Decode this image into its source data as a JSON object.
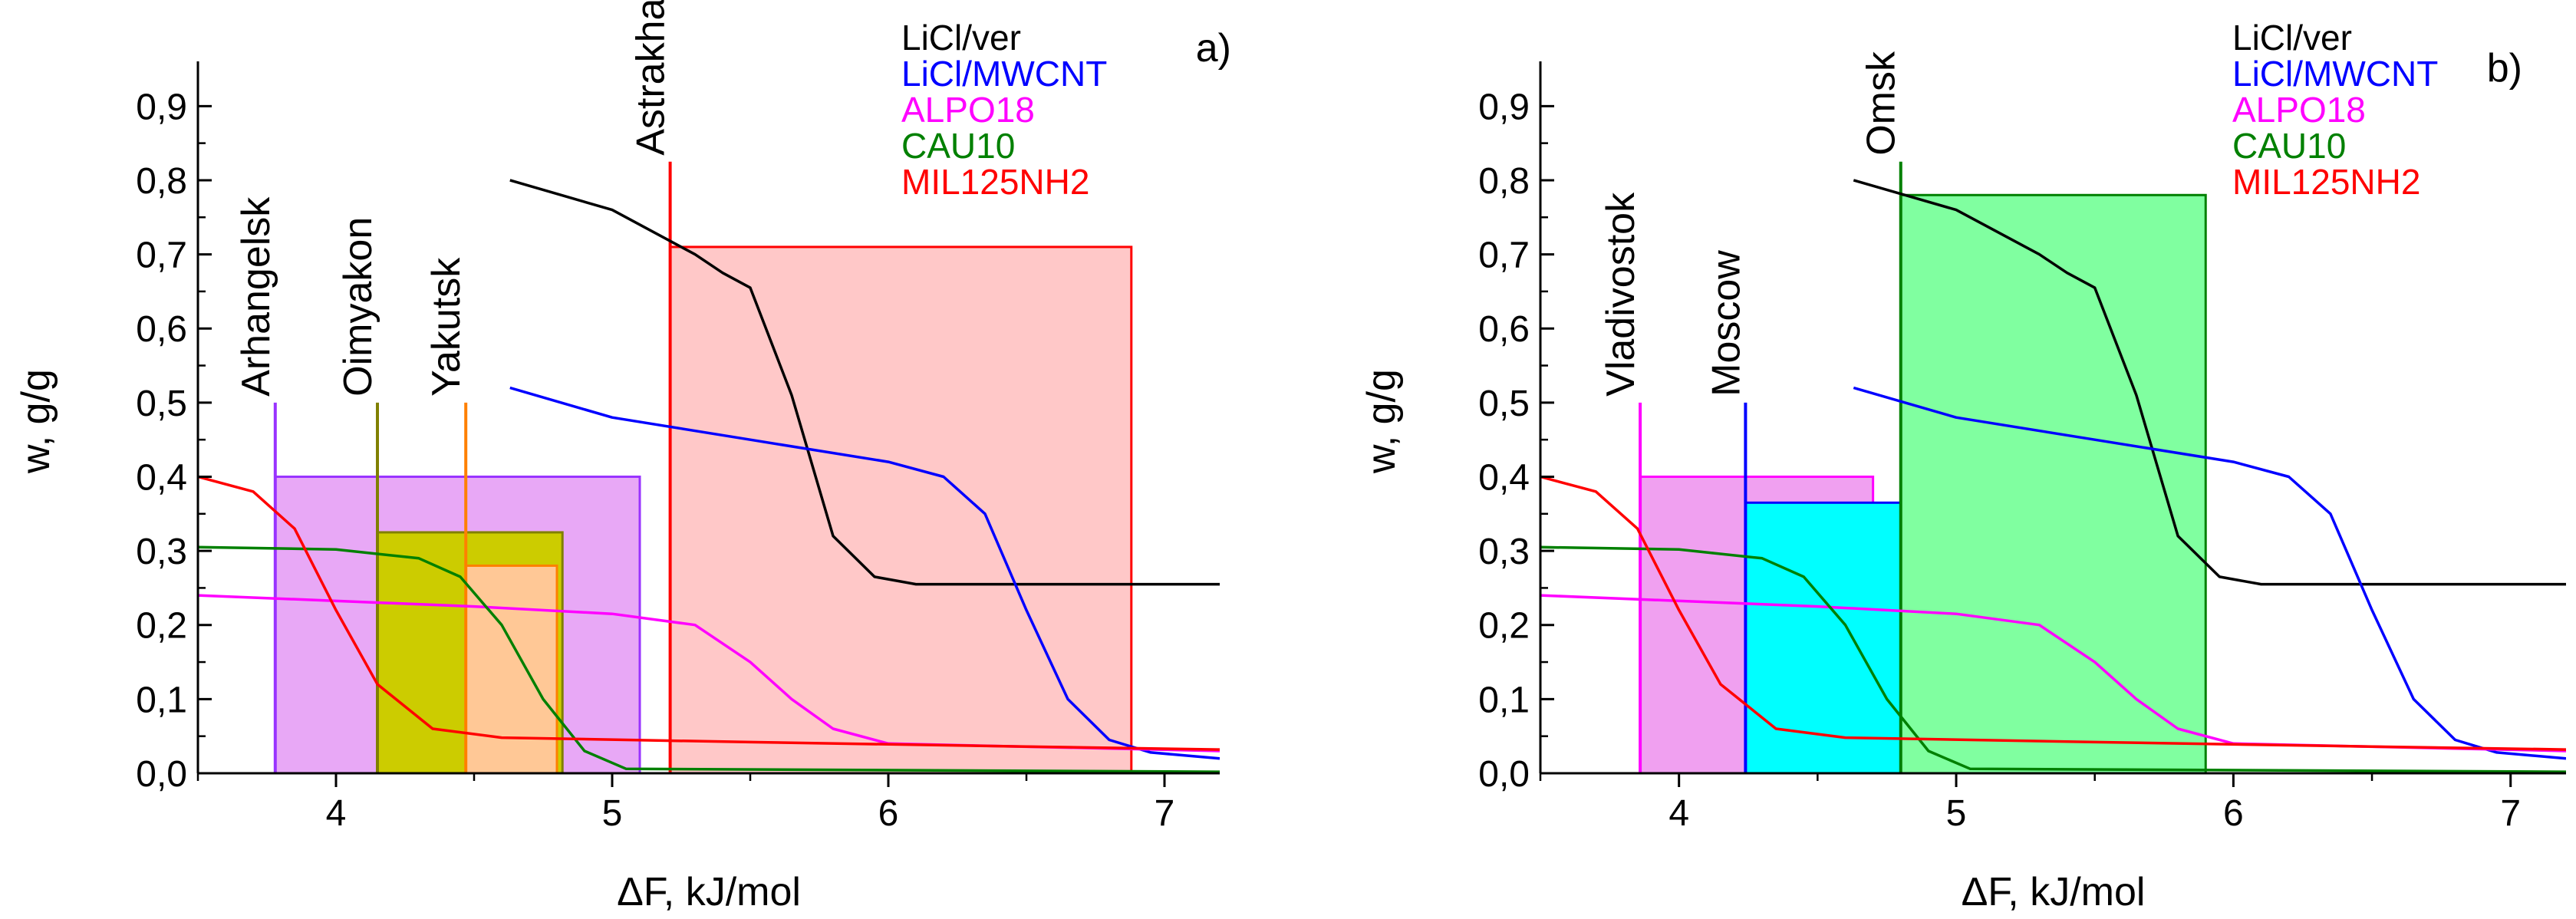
{
  "chart_data": [
    {
      "type": "line",
      "panel_label": "a)",
      "xlabel": "ΔF, kJ/mol",
      "ylabel": "w, g/g",
      "xlim": [
        3.5,
        7.2
      ],
      "ylim": [
        0,
        0.95
      ],
      "x_ticks": [
        4,
        5,
        6,
        7
      ],
      "y_ticks": [
        0.0,
        0.1,
        0.2,
        0.3,
        0.4,
        0.5,
        0.6,
        0.7,
        0.8,
        0.9
      ],
      "y_tick_labels": [
        "0,0",
        "0,1",
        "0,2",
        "0,3",
        "0,4",
        "0,5",
        "0,6",
        "0,7",
        "0,8",
        "0,9"
      ],
      "legend": [
        {
          "name": "LiCl/ver",
          "color": "#000000"
        },
        {
          "name": "LiCl/MWCNT",
          "color": "#0000ff"
        },
        {
          "name": "ALPO18",
          "color": "#ff00ff"
        },
        {
          "name": "CAU10",
          "color": "#008000"
        },
        {
          "name": "MIL125NH2",
          "color": "#ff0000"
        }
      ],
      "series": [
        {
          "name": "LiCl/ver",
          "color": "#000000",
          "points": [
            [
              4.63,
              0.8
            ],
            [
              5.0,
              0.76
            ],
            [
              5.3,
              0.7
            ],
            [
              5.4,
              0.675
            ],
            [
              5.5,
              0.655
            ],
            [
              5.65,
              0.51
            ],
            [
              5.8,
              0.32
            ],
            [
              5.95,
              0.265
            ],
            [
              6.1,
              0.255
            ],
            [
              7.2,
              0.255
            ]
          ]
        },
        {
          "name": "LiCl/MWCNT",
          "color": "#0000ff",
          "points": [
            [
              4.63,
              0.52
            ],
            [
              5.0,
              0.48
            ],
            [
              5.5,
              0.45
            ],
            [
              6.0,
              0.42
            ],
            [
              6.2,
              0.4
            ],
            [
              6.35,
              0.35
            ],
            [
              6.5,
              0.22
            ],
            [
              6.65,
              0.1
            ],
            [
              6.8,
              0.045
            ],
            [
              6.95,
              0.028
            ],
            [
              7.2,
              0.02
            ]
          ]
        },
        {
          "name": "ALPO18",
          "color": "#ff00ff",
          "points": [
            [
              3.5,
              0.24
            ],
            [
              4.5,
              0.225
            ],
            [
              5.0,
              0.215
            ],
            [
              5.3,
              0.2
            ],
            [
              5.5,
              0.15
            ],
            [
              5.65,
              0.1
            ],
            [
              5.8,
              0.06
            ],
            [
              6.0,
              0.04
            ],
            [
              7.2,
              0.03
            ]
          ]
        },
        {
          "name": "CAU10",
          "color": "#008000",
          "points": [
            [
              3.5,
              0.305
            ],
            [
              4.0,
              0.302
            ],
            [
              4.3,
              0.29
            ],
            [
              4.45,
              0.265
            ],
            [
              4.6,
              0.2
            ],
            [
              4.75,
              0.1
            ],
            [
              4.9,
              0.03
            ],
            [
              5.05,
              0.006
            ],
            [
              7.2,
              0.002
            ]
          ]
        },
        {
          "name": "MIL125NH2",
          "color": "#ff0000",
          "points": [
            [
              3.5,
              0.4
            ],
            [
              3.7,
              0.38
            ],
            [
              3.85,
              0.33
            ],
            [
              4.0,
              0.22
            ],
            [
              4.15,
              0.12
            ],
            [
              4.35,
              0.06
            ],
            [
              4.6,
              0.048
            ],
            [
              5.5,
              0.042
            ],
            [
              6.5,
              0.036
            ],
            [
              7.2,
              0.032
            ]
          ]
        }
      ],
      "cities": [
        {
          "name": "Arhangelsk",
          "x": 3.78,
          "color": "#9933ff",
          "box_to": 5.1,
          "box_top": 0.4,
          "fill": "#e8a8f6"
        },
        {
          "name": "Oimyakon",
          "x": 4.15,
          "color": "#808000",
          "box_to": 4.82,
          "box_top": 0.325,
          "fill": "#cccc00"
        },
        {
          "name": "Yakutsk",
          "x": 4.47,
          "color": "#ff8000",
          "box_to": 4.8,
          "box_top": 0.28,
          "fill": "#ffc896"
        },
        {
          "name": "Astrakhan",
          "x": 5.21,
          "color": "#ff0000",
          "box_to": 6.88,
          "box_top": 0.71,
          "fill": "#ffc8c8"
        }
      ]
    },
    {
      "type": "line",
      "panel_label": "b)",
      "xlabel": "ΔF, kJ/mol",
      "ylabel": "w, g/g",
      "xlim": [
        3.5,
        7.2
      ],
      "ylim": [
        0,
        0.95
      ],
      "x_ticks": [
        4,
        5,
        6,
        7
      ],
      "y_ticks": [
        0.0,
        0.1,
        0.2,
        0.3,
        0.4,
        0.5,
        0.6,
        0.7,
        0.8,
        0.9
      ],
      "y_tick_labels": [
        "0,0",
        "0,1",
        "0,2",
        "0,3",
        "0,4",
        "0,5",
        "0,6",
        "0,7",
        "0,8",
        "0,9"
      ],
      "legend": [
        {
          "name": "LiCl/ver",
          "color": "#000000"
        },
        {
          "name": "LiCl/MWCNT",
          "color": "#0000ff"
        },
        {
          "name": "ALPO18",
          "color": "#ff00ff"
        },
        {
          "name": "CAU10",
          "color": "#008000"
        },
        {
          "name": "MIL125NH2",
          "color": "#ff0000"
        }
      ],
      "series": [
        {
          "name": "LiCl/ver",
          "color": "#000000",
          "points": [
            [
              4.63,
              0.8
            ],
            [
              5.0,
              0.76
            ],
            [
              5.3,
              0.7
            ],
            [
              5.4,
              0.675
            ],
            [
              5.5,
              0.655
            ],
            [
              5.65,
              0.51
            ],
            [
              5.8,
              0.32
            ],
            [
              5.95,
              0.265
            ],
            [
              6.1,
              0.255
            ],
            [
              7.2,
              0.255
            ]
          ]
        },
        {
          "name": "LiCl/MWCNT",
          "color": "#0000ff",
          "points": [
            [
              4.63,
              0.52
            ],
            [
              5.0,
              0.48
            ],
            [
              5.5,
              0.45
            ],
            [
              6.0,
              0.42
            ],
            [
              6.2,
              0.4
            ],
            [
              6.35,
              0.35
            ],
            [
              6.5,
              0.22
            ],
            [
              6.65,
              0.1
            ],
            [
              6.8,
              0.045
            ],
            [
              6.95,
              0.028
            ],
            [
              7.2,
              0.02
            ]
          ]
        },
        {
          "name": "ALPO18",
          "color": "#ff00ff",
          "points": [
            [
              3.5,
              0.24
            ],
            [
              4.5,
              0.225
            ],
            [
              5.0,
              0.215
            ],
            [
              5.3,
              0.2
            ],
            [
              5.5,
              0.15
            ],
            [
              5.65,
              0.1
            ],
            [
              5.8,
              0.06
            ],
            [
              6.0,
              0.04
            ],
            [
              7.2,
              0.03
            ]
          ]
        },
        {
          "name": "CAU10",
          "color": "#008000",
          "points": [
            [
              3.5,
              0.305
            ],
            [
              4.0,
              0.302
            ],
            [
              4.3,
              0.29
            ],
            [
              4.45,
              0.265
            ],
            [
              4.6,
              0.2
            ],
            [
              4.75,
              0.1
            ],
            [
              4.9,
              0.03
            ],
            [
              5.05,
              0.006
            ],
            [
              7.2,
              0.002
            ]
          ]
        },
        {
          "name": "MIL125NH2",
          "color": "#ff0000",
          "points": [
            [
              3.5,
              0.4
            ],
            [
              3.7,
              0.38
            ],
            [
              3.85,
              0.33
            ],
            [
              4.0,
              0.22
            ],
            [
              4.15,
              0.12
            ],
            [
              4.35,
              0.06
            ],
            [
              4.6,
              0.048
            ],
            [
              5.5,
              0.042
            ],
            [
              6.5,
              0.036
            ],
            [
              7.2,
              0.032
            ]
          ]
        }
      ],
      "cities": [
        {
          "name": "Vladivostok",
          "x": 3.86,
          "color": "#ff00ff",
          "box_to": 4.7,
          "box_top": 0.4,
          "fill": "#f0a0f0"
        },
        {
          "name": "Moscow",
          "x": 4.24,
          "color": "#0000ff",
          "box_to": 5.0,
          "box_top": 0.365,
          "fill": "#00ffff"
        },
        {
          "name": "Omsk",
          "x": 4.8,
          "color": "#008000",
          "box_to": 5.9,
          "box_top": 0.78,
          "fill": "#80ffa0"
        }
      ]
    }
  ]
}
